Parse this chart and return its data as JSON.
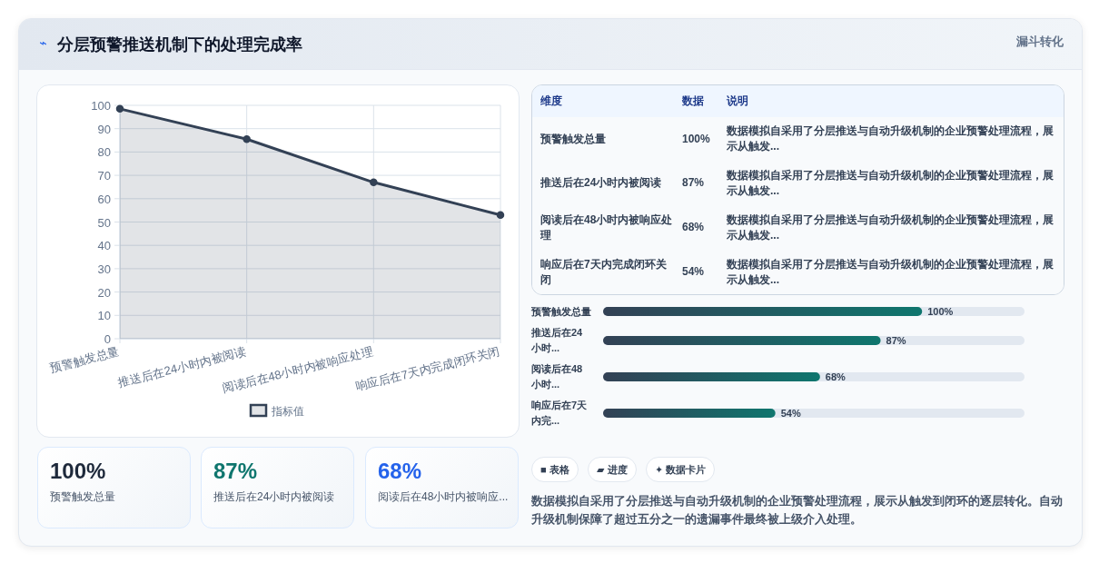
{
  "chart_data": [
    {
      "type": "other",
      "title": "分层预警推送机制下的处理完成率",
      "annotations": [
        "⌁",
        "漏斗转化"
      ]
    },
    {
      "type": "area",
      "categories": [
        "预警触发总量",
        "推送后在24小时内被阅读",
        "阅读后在48小时内被响应处理",
        "响应后在7天内完成闭环关闭"
      ],
      "series": [
        {
          "name": "指标值",
          "color": "#334155",
          "values": [
            98.5,
            85.5,
            67,
            53
          ]
        }
      ],
      "ylim": [
        0,
        100
      ],
      "yticks": [
        0,
        10,
        20,
        30,
        40,
        50,
        60,
        70,
        80,
        90,
        100
      ],
      "grid": true,
      "legend": "bottom",
      "marker": "circle",
      "line_style": "solid"
    },
    {
      "type": "other",
      "annotations": [
        "维度",
        "数据",
        "说明",
        "预警触发总量",
        "100%",
        "数据模拟自采用了分层推送与自动升级机制的企业预警处理流程，展示从触发...",
        "推送后在24小时内被阅读",
        "87%",
        "数据模拟自采用了分层推送与自动升级机制的企业预警处理流程，展示从触发...",
        "阅读后在48小时内被响应处理",
        "68%",
        "数据模拟自采用了分层推送与自动升级机制的企业预警处理流程，展示从触发...",
        "响应后在7天内完成闭环关闭",
        "54%",
        "数据模拟自采用了分层推送与自动升级机制的企业预警处理流程，展示从触发..."
      ]
    },
    {
      "type": "bar",
      "orientation": "horizontal",
      "categories": [
        "预警触发总量",
        "推送后在24小时...",
        "阅读后在48小时...",
        "响应后在7天内完..."
      ],
      "values": [
        100,
        87,
        68,
        54
      ],
      "color": "#0f766e",
      "value_labels": [
        "100%",
        "87%",
        "68%",
        "54%"
      ]
    },
    {
      "type": "other",
      "annotations": [
        "100%",
        "预警触发总量",
        "87%",
        "推送后在24小时内被阅读",
        "68%",
        "阅读后在48小时内被响应..."
      ],
      "colors": [
        "#1e293b",
        "#0f766e",
        "#2563eb"
      ]
    },
    {
      "type": "other",
      "annotations": [
        "■ 表格",
        "▰ 进度",
        "✦ 数据卡片",
        "数据模拟自采用了分层推送与自动升级机制的企业预警处理流程，展示从触发到闭环的逐层转化。自动升级机制保障了超过五分之一的遗漏事件最终被上级介入处理。"
      ]
    }
  ]
}
